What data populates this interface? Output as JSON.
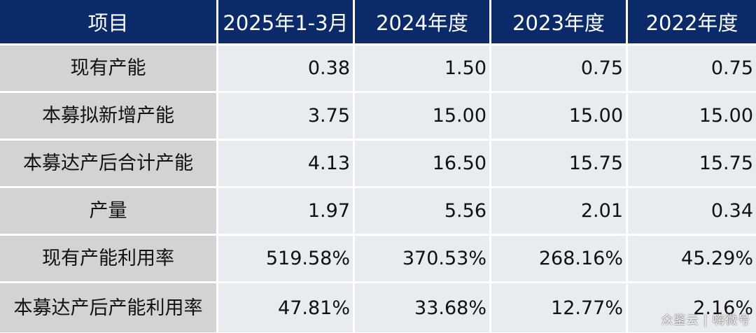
{
  "table": {
    "headers": [
      "项目",
      "2025年1-3月",
      "2024年度",
      "2023年度",
      "2022年度"
    ],
    "rows": [
      {
        "label": "现有产能",
        "values": [
          "0.38",
          "1.50",
          "0.75",
          "0.75"
        ]
      },
      {
        "label": "本募拟新增产能",
        "values": [
          "3.75",
          "15.00",
          "15.00",
          "15.00"
        ]
      },
      {
        "label": "本募达产后合计产能",
        "values": [
          "4.13",
          "16.50",
          "15.75",
          "15.75"
        ]
      },
      {
        "label": "产量",
        "values": [
          "1.97",
          "5.56",
          "2.01",
          "0.34"
        ]
      },
      {
        "label": "现有产能利用率",
        "values": [
          "519.58%",
          "370.53%",
          "268.16%",
          "45.29%"
        ]
      },
      {
        "label": "本募达产后产能利用率",
        "values": [
          "47.81%",
          "33.68%",
          "12.77%",
          "2.16%"
        ]
      }
    ]
  },
  "watermark": "众鉴云 | 嗨微号",
  "colors": {
    "header_bg": "#0a2a6a",
    "label_bg": "#d3d3d3",
    "value_bg": "#e8ebef"
  }
}
